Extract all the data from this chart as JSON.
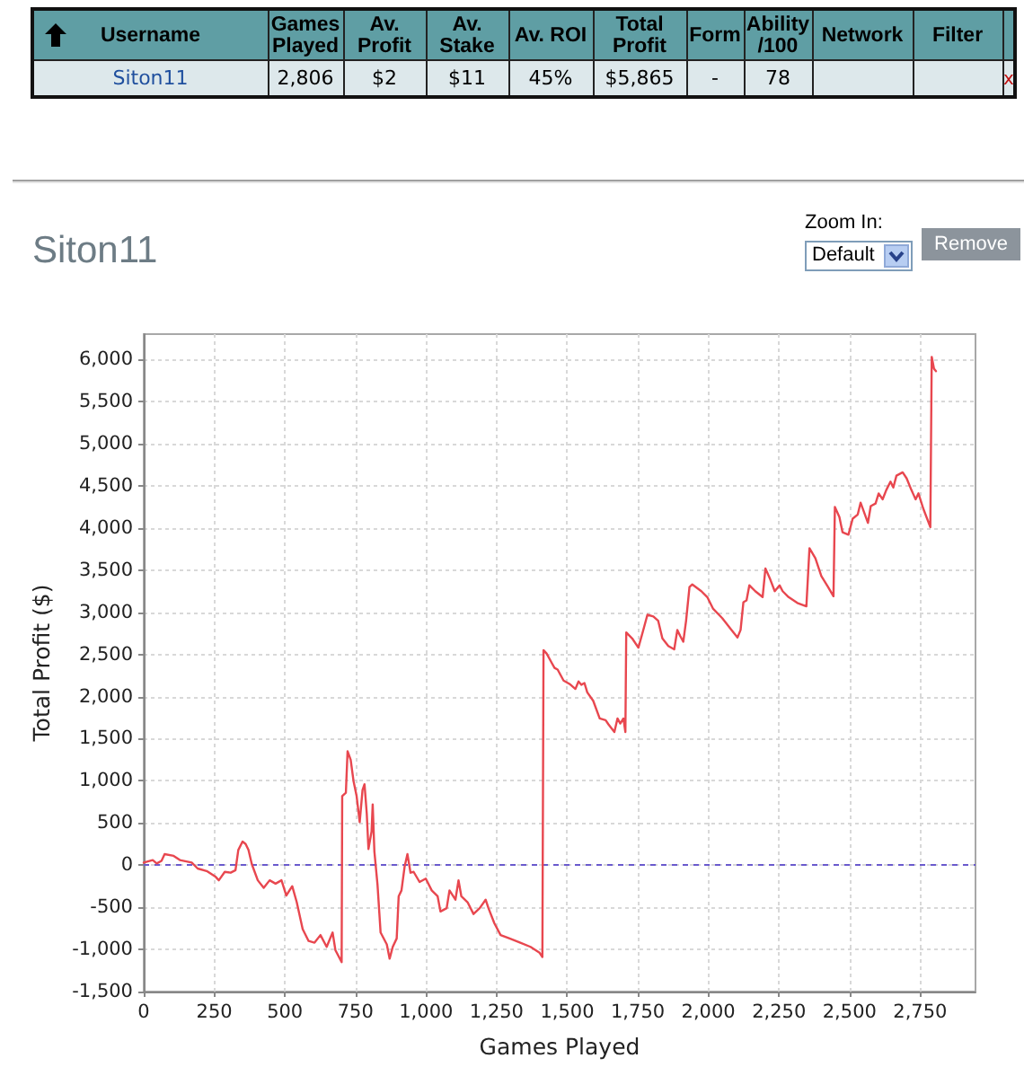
{
  "chart_data": [
    {
      "type": "other",
      "annotations": [
        "Username",
        "Games Played",
        "Av. Profit",
        "Av. Stake",
        "Av. ROI",
        "Total Profit",
        "Form",
        "Ability /100",
        "Network",
        "Filter",
        "Siton11",
        "2,806",
        "$2",
        "$11",
        "45%",
        "$5,865",
        "-",
        "78",
        "x"
      ]
    },
    {
      "type": "line",
      "title": "Siton11",
      "xlabel": "Games Played",
      "ylabel": "Total Profit ($)",
      "annotations": [
        "Zoom In:",
        "Default",
        "Remove"
      ],
      "x": [
        0,
        32,
        46,
        63,
        74,
        106,
        128,
        170,
        191,
        223,
        255,
        266,
        287,
        308,
        325,
        335,
        350,
        361,
        371,
        383,
        393,
        404,
        425,
        446,
        467,
        488,
        505,
        526,
        542,
        563,
        584,
        605,
        626,
        648,
        669,
        679,
        701,
        703,
        716,
        722,
        733,
        743,
        754,
        765,
        775,
        782,
        790,
        796,
        807,
        811,
        817,
        828,
        839,
        861,
        871,
        882,
        896,
        903,
        913,
        924,
        934,
        945,
        956,
        977,
        999,
        1020,
        1041,
        1051,
        1073,
        1083,
        1104,
        1115,
        1125,
        1147,
        1168,
        1190,
        1211,
        1221,
        1242,
        1264,
        1296,
        1334,
        1370,
        1402,
        1412,
        1416,
        1427,
        1445,
        1455,
        1466,
        1487,
        1508,
        1529,
        1540,
        1550,
        1561,
        1571,
        1592,
        1615,
        1636,
        1646,
        1667,
        1678,
        1688,
        1699,
        1706,
        1709,
        1730,
        1752,
        1767,
        1784,
        1805,
        1822,
        1837,
        1858,
        1879,
        1890,
        1900,
        1911,
        1921,
        1933,
        1943,
        1975,
        1996,
        2017,
        2049,
        2082,
        2103,
        2114,
        2124,
        2135,
        2145,
        2166,
        2192,
        2202,
        2219,
        2235,
        2252,
        2263,
        2284,
        2315,
        2347,
        2358,
        2379,
        2400,
        2422,
        2443,
        2448,
        2464,
        2475,
        2496,
        2511,
        2529,
        2539,
        2550,
        2565,
        2575,
        2592,
        2603,
        2617,
        2630,
        2645,
        2655,
        2666,
        2688,
        2702,
        2719,
        2734,
        2744,
        2761,
        2786,
        2791,
        2799,
        2806
      ],
      "values": [
        30,
        60,
        20,
        50,
        130,
        110,
        60,
        30,
        -40,
        -70,
        -140,
        -180,
        -80,
        -90,
        -60,
        180,
        280,
        250,
        180,
        10,
        -80,
        -180,
        -270,
        -180,
        -220,
        -180,
        -360,
        -250,
        -440,
        -760,
        -900,
        -920,
        -830,
        -970,
        -800,
        -1010,
        -1150,
        820,
        860,
        1350,
        1250,
        1000,
        820,
        510,
        890,
        960,
        610,
        190,
        400,
        720,
        160,
        -230,
        -800,
        -940,
        -1110,
        -970,
        -870,
        -370,
        -300,
        -20,
        130,
        -90,
        -80,
        -200,
        -160,
        -300,
        -370,
        -550,
        -510,
        -300,
        -410,
        -180,
        -370,
        -440,
        -580,
        -510,
        -410,
        -510,
        -690,
        -830,
        -870,
        -920,
        -970,
        -1040,
        -1090,
        2550,
        2510,
        2400,
        2340,
        2320,
        2190,
        2150,
        2090,
        2180,
        2140,
        2160,
        2050,
        1950,
        1740,
        1720,
        1670,
        1580,
        1740,
        1680,
        1740,
        1580,
        2760,
        2690,
        2580,
        2760,
        2970,
        2950,
        2900,
        2690,
        2600,
        2560,
        2790,
        2720,
        2650,
        2900,
        3300,
        3330,
        3250,
        3180,
        3040,
        2930,
        2790,
        2700,
        2790,
        3120,
        3140,
        3320,
        3250,
        3180,
        3520,
        3390,
        3250,
        3320,
        3250,
        3180,
        3110,
        3070,
        3760,
        3640,
        3430,
        3310,
        3190,
        4250,
        4130,
        3950,
        3920,
        4110,
        4160,
        4300,
        4200,
        4060,
        4260,
        4290,
        4410,
        4340,
        4450,
        4550,
        4480,
        4620,
        4660,
        4590,
        4450,
        4340,
        4410,
        4230,
        4010,
        6030,
        5890,
        5860
      ],
      "color": "#e8474f",
      "xlim": [
        0,
        2946
      ],
      "xticks": [
        0,
        250,
        500,
        750,
        {
          "value": 1000,
          "label": "1,000"
        },
        {
          "value": 1250,
          "label": "1,250"
        },
        {
          "value": 1500,
          "label": "1,500"
        },
        {
          "value": 1750,
          "label": "1,750"
        },
        {
          "value": 2000,
          "label": "2,000"
        },
        {
          "value": 2250,
          "label": "2,250"
        },
        {
          "value": 2500,
          "label": "2,500"
        },
        {
          "value": 2750,
          "label": "2,750"
        }
      ],
      "ylim": [
        -1500,
        6300
      ],
      "yticks": [
        {
          "value": -1500,
          "label": "-1,500"
        },
        {
          "value": -1000,
          "label": "-1,000"
        },
        -500,
        0,
        500,
        {
          "value": 1000,
          "label": "1,000"
        },
        {
          "value": 1500,
          "label": "1,500"
        },
        {
          "value": 2000,
          "label": "2,000"
        },
        {
          "value": 2500,
          "label": "2,500"
        },
        {
          "value": 3000,
          "label": "3,000"
        },
        {
          "value": 3500,
          "label": "3,500"
        },
        {
          "value": 4000,
          "label": "4,000"
        },
        {
          "value": 4500,
          "label": "4,500"
        },
        {
          "value": 5000,
          "label": "5,000"
        },
        {
          "value": 5500,
          "label": "5,500"
        },
        {
          "value": 6000,
          "label": "6,000"
        }
      ],
      "ref_lines": [
        {
          "axis": "y",
          "value": 0,
          "color": "#6a5acd",
          "line_style": "dashed"
        }
      ],
      "grid": true
    }
  ]
}
